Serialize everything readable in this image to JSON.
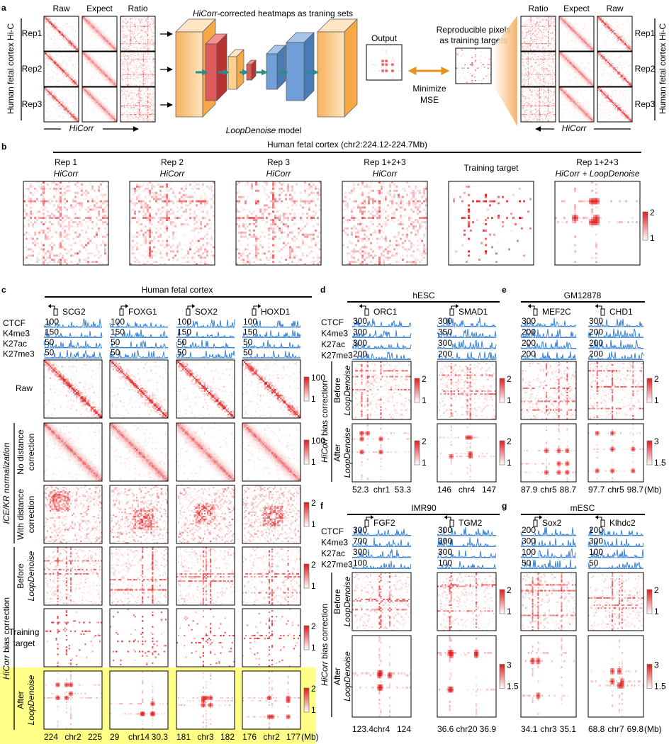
{
  "panel_a": {
    "letter": "a",
    "left": {
      "columns": [
        "Raw",
        "Expect",
        "Ratio"
      ],
      "reps": [
        "Rep1",
        "Rep2",
        "Rep3"
      ],
      "label": "Human fetal cortex Hi-C",
      "arrow": "HiCorr"
    },
    "model_title": [
      "HiCorr",
      "-corrected heatmaps as traning sets"
    ],
    "model_label": [
      "LoopDenoise",
      " model"
    ],
    "output": "Output",
    "target": [
      "Reproducible pixels",
      "as training targets"
    ],
    "mse": [
      "Minimize",
      "MSE"
    ],
    "right": {
      "columns": [
        "Ratio",
        "Expect",
        "Raw"
      ],
      "reps": [
        "Rep1",
        "Rep2",
        "Rep3"
      ],
      "label": "Human fetal cortex Hi-C",
      "arrow": "HiCorr"
    }
  },
  "panel_b": {
    "letter": "b",
    "title": "Human fetal cortex (chr2:224.12-224.7Mb)",
    "columns": [
      {
        "line1": "Rep 1",
        "line2": "HiCorr"
      },
      {
        "line1": "Rep 2",
        "line2": "HiCorr"
      },
      {
        "line1": "Rep 3",
        "line2": "HiCorr"
      },
      {
        "line1": "Rep 1+2+3",
        "line2": "HiCorr"
      },
      {
        "line1": "Training target"
      },
      {
        "line1": "Rep 1+2+3",
        "line2": "HiCorr + LoopDenoise"
      }
    ],
    "colorbar": [
      "2",
      "1"
    ]
  },
  "panel_c": {
    "letter": "c",
    "title": "Human fetal cortex",
    "tracks": [
      "CTCF",
      "K4me3",
      "K27ac",
      "K27me3"
    ],
    "columns": [
      {
        "gene": "SCG2",
        "scales": [
          "100",
          "150",
          "50",
          "50"
        ],
        "axis": [
          "224",
          "chr2",
          "225"
        ]
      },
      {
        "gene": "FOXG1",
        "scales": [
          "100",
          "150",
          "50",
          "50"
        ],
        "axis": [
          "29",
          "chr14",
          "30.3"
        ]
      },
      {
        "gene": "SOX2",
        "scales": [
          "100",
          "150",
          "50",
          "50"
        ],
        "axis": [
          "181",
          "chr3",
          "182"
        ]
      },
      {
        "gene": "HOXD1",
        "scales": [
          "100",
          "150",
          "50",
          "50"
        ],
        "axis": [
          "176",
          "chr2",
          "177"
        ]
      }
    ],
    "rows": [
      {
        "label": [
          "Raw"
        ],
        "colorbar": [
          "100",
          "1"
        ]
      },
      {
        "label": [
          "No distance",
          "correction"
        ],
        "colorbar": [
          "100",
          "1"
        ]
      },
      {
        "label": [
          "With distance",
          "correction"
        ],
        "colorbar": [
          "2",
          "1"
        ]
      },
      {
        "label": [
          "Before",
          "LoopDenoise"
        ],
        "colorbar": [
          "2",
          "1"
        ]
      },
      {
        "label": [
          "Training",
          "target"
        ],
        "colorbar": [
          "2",
          "1"
        ]
      },
      {
        "label": [
          "After",
          "LoopDenoise"
        ],
        "colorbar": [
          "2",
          "1"
        ]
      }
    ],
    "groups": [
      [
        "ICE/KR normalization"
      ],
      [
        "HiCorr",
        " bias correction"
      ]
    ],
    "unit": "(Mb)"
  },
  "panel_d": {
    "letter": "d",
    "title": "hESC",
    "tracks": [
      "CTCF",
      "K4me3",
      "K27ac",
      "K27me3"
    ],
    "columns": [
      {
        "gene": "ORC1",
        "scales": [
          "300",
          "300",
          "300",
          "200"
        ],
        "axis": [
          "52.3",
          "chr1",
          "53.3"
        ],
        "colorbars": [
          [
            "2",
            "1"
          ],
          [
            "2",
            "1"
          ]
        ]
      },
      {
        "gene": "SMAD1",
        "scales": [
          "300",
          "350",
          "300",
          "200"
        ],
        "axis": [
          "146",
          "chr4",
          "147"
        ],
        "colorbars": [
          [
            "2",
            "1"
          ],
          [
            "2",
            "1"
          ]
        ]
      }
    ],
    "rows": [
      [
        "Before",
        "LoopDenoise"
      ],
      [
        "After",
        "LoopDenoise"
      ]
    ],
    "group": [
      "HiCorr",
      " bias correction"
    ]
  },
  "panel_e": {
    "letter": "e",
    "title": "GM12878",
    "columns": [
      {
        "gene": "MEF2C",
        "scales": [
          "300",
          "200",
          "200",
          "200"
        ],
        "axis": [
          "87.9",
          "chr5",
          "88.7"
        ]
      },
      {
        "gene": "CHD1",
        "scales": [
          "300",
          "200",
          "200",
          "200"
        ],
        "axis": [
          "97.7",
          "chr5",
          "98.7"
        ],
        "colorbars": [
          [
            "2",
            "1"
          ],
          [
            "3",
            "1.5"
          ]
        ]
      }
    ],
    "unit": "(Mb)"
  },
  "panel_f": {
    "letter": "f",
    "title": "IMR90",
    "tracks": [
      "CTCF",
      "K4me3",
      "K27ac",
      "K27me3"
    ],
    "columns": [
      {
        "gene": "FGF2",
        "scales": [
          "300",
          "700",
          "300",
          "100"
        ],
        "axis": [
          "123.4",
          "chr4",
          "124"
        ]
      },
      {
        "gene": "TGM2",
        "scales": [
          "300",
          "300",
          "300",
          "100"
        ],
        "axis": [
          "36.6",
          "chr20",
          "36.9"
        ],
        "colorbars": [
          [
            "2",
            "1"
          ],
          [
            "3",
            "1.5"
          ]
        ]
      }
    ],
    "rows": [
      [
        "Before",
        "LoopDenoise"
      ],
      [
        "After",
        "LoopDenoise"
      ]
    ],
    "group": [
      "HiCorr",
      " bias correction"
    ]
  },
  "panel_g": {
    "letter": "g",
    "title": "mESC",
    "columns": [
      {
        "gene": "Sox2",
        "scales": [
          "200",
          "300",
          "100",
          "50"
        ],
        "axis": [
          "34.1",
          "chr3",
          "35.1"
        ]
      },
      {
        "gene": "Klhdc2",
        "scales": [
          "200",
          "300",
          "100",
          "50"
        ],
        "axis": [
          "68.8",
          "chr7",
          "69.8"
        ],
        "colorbars": [
          [
            "2",
            "1"
          ],
          [
            "3",
            "1.5"
          ]
        ]
      }
    ],
    "unit": "(Mb)"
  }
}
